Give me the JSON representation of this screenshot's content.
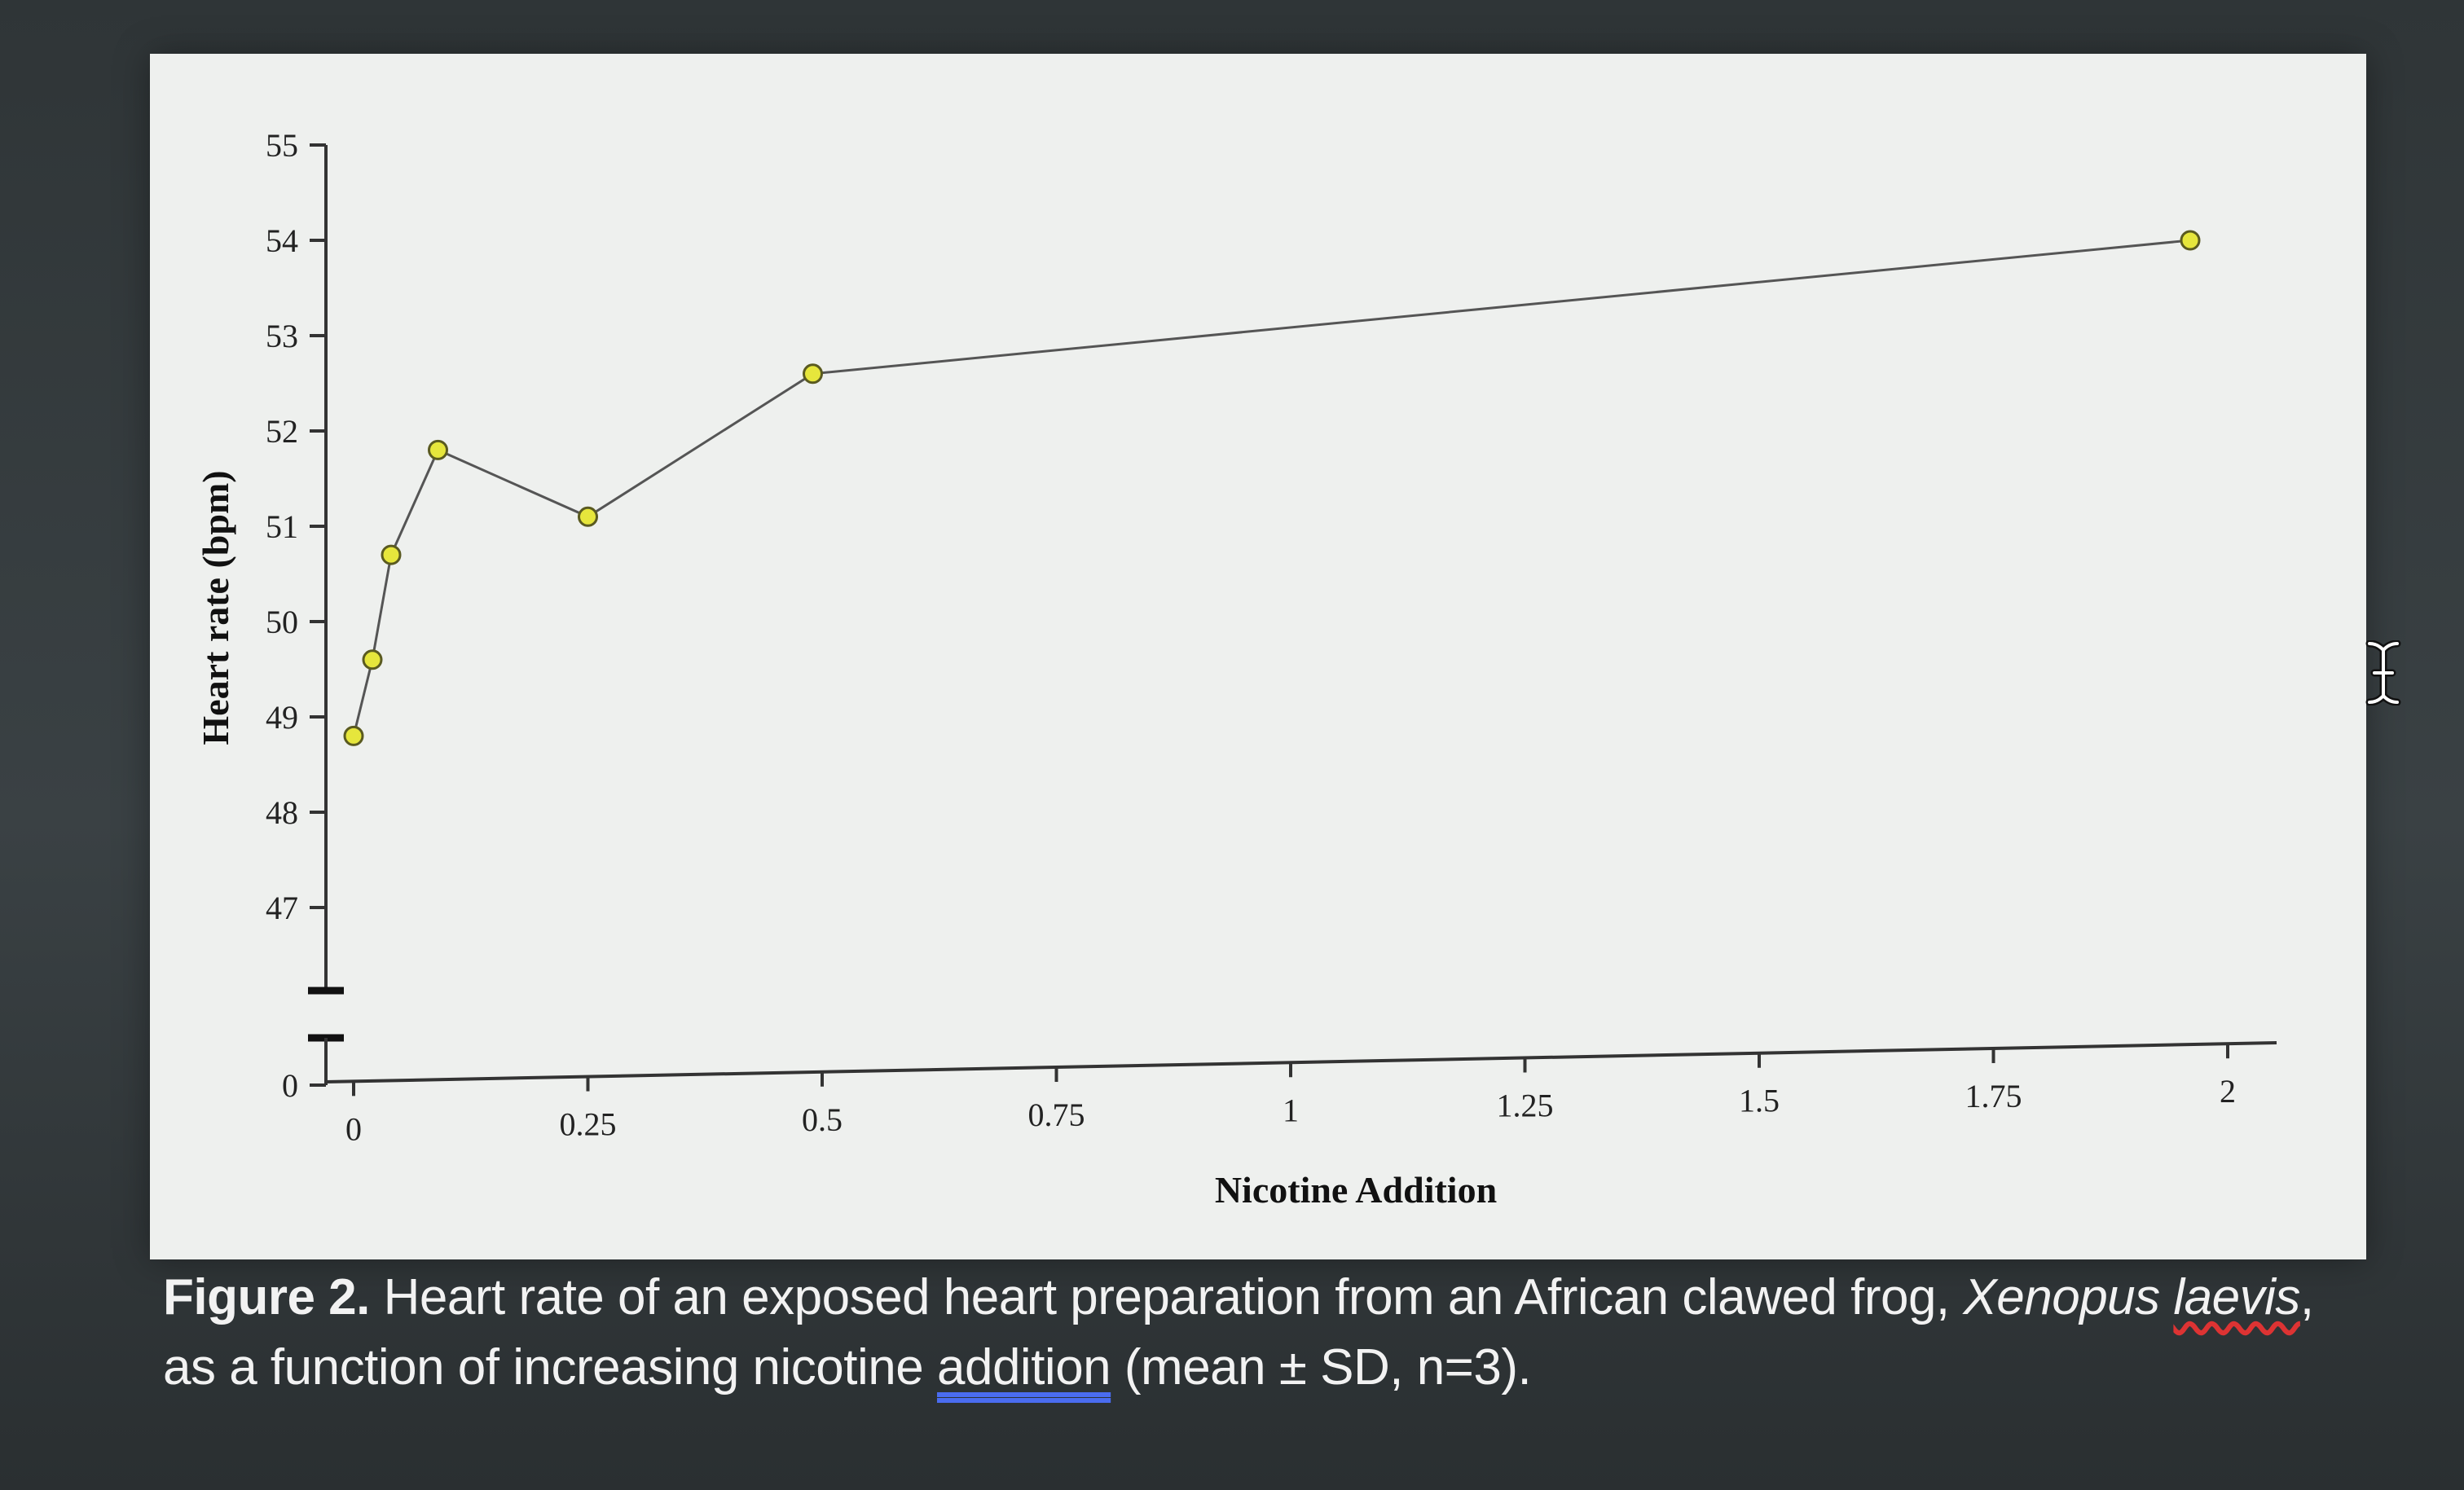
{
  "chart_data": {
    "type": "line",
    "title": "",
    "xlabel": "Nicotine Addition",
    "ylabel": "Heart rate (bpm)",
    "x": [
      0,
      0.02,
      0.04,
      0.09,
      0.25,
      0.49,
      1.96
    ],
    "series": [
      {
        "name": "",
        "values": [
          48.8,
          49.6,
          50.7,
          51.8,
          51.1,
          52.6,
          54.0
        ]
      }
    ],
    "xlim": [
      0,
      2
    ],
    "ylim": [
      47,
      55
    ],
    "axis_break": true,
    "y_ticks": [
      0,
      47,
      48,
      49,
      50,
      51,
      52,
      53,
      54,
      55
    ],
    "x_ticks": [
      0,
      0.25,
      0.5,
      0.75,
      1,
      1.25,
      1.5,
      1.75,
      2
    ],
    "y_tick_labels": [
      "0",
      "47",
      "48",
      "49",
      "50",
      "51",
      "52",
      "53",
      "54",
      "55"
    ],
    "x_tick_labels": [
      "0",
      "0.25",
      "0.5",
      "0.75",
      "1",
      "1.25",
      "1.5",
      "1.75",
      "2"
    ],
    "grid": false,
    "legend": "none",
    "colors": {
      "marker_fill": "#e6e63c",
      "marker_stroke": "#5a5a20",
      "line": "#555555",
      "axis": "#333333"
    }
  },
  "caption": {
    "label": "Figure 2.",
    "text_before": " Heart rate of an exposed heart preparation from an African clawed frog, ",
    "species_genus": "Xenopus",
    "species_epithet": "laevis",
    "text_mid": ", as a function of increasing nicotine ",
    "underlined_word": "addition",
    "text_after": " (mean ± SD, n=3)."
  },
  "cursor_icon": "i-beam-text-cursor-icon"
}
